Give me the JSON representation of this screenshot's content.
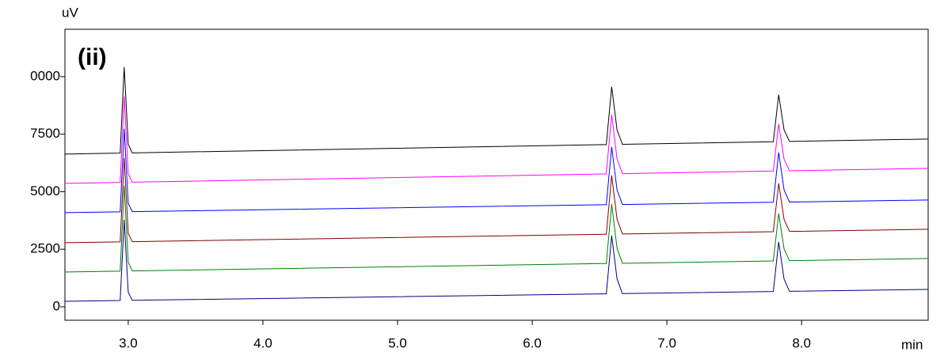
{
  "chart_data": {
    "type": "line",
    "annotation": "(ii)",
    "y_label": "uV",
    "x_label": "min",
    "x": [
      2.53,
      2.94,
      2.97,
      3.0,
      3.03,
      6.55,
      6.59,
      6.63,
      6.67,
      7.79,
      7.83,
      7.87,
      7.91,
      8.94
    ],
    "series": [
      {
        "color": "#000000",
        "values": [
          6637,
          6679,
          10420,
          7060,
          6688,
          7047,
          9560,
          7678,
          7059,
          7173,
          9216,
          7690,
          7185,
          7290
        ]
      },
      {
        "color": "#ff00ff",
        "values": [
          5364,
          5406,
          9147,
          5786,
          5415,
          5774,
          8356,
          6427,
          5786,
          5900,
          7944,
          6418,
          5912,
          6018
        ]
      },
      {
        "color": "#0000ff",
        "values": [
          4092,
          4127,
          7737,
          4493,
          4135,
          4437,
          6946,
          5070,
          4446,
          4543,
          6706,
          5087,
          4550,
          4642
        ]
      },
      {
        "color": "#800000",
        "values": [
          2785,
          2822,
          6465,
          3192,
          2831,
          3152,
          5708,
          3797,
          3163,
          3265,
          5364,
          3796,
          3276,
          3370
        ]
      },
      {
        "color": "#008000",
        "values": [
          1513,
          1550,
          5261,
          1927,
          1559,
          1880,
          4470,
          2534,
          1891,
          1993,
          4058,
          2516,
          2004,
          2098
        ]
      },
      {
        "color": "#000080",
        "values": [
          241,
          274,
          3783,
          630,
          281,
          565,
          3095,
          1203,
          574,
          664,
          2820,
          1208,
          673,
          757
        ]
      }
    ],
    "xlim": [
      2.53,
      8.94
    ],
    "ylim": [
      -585,
      12060
    ],
    "xticks": [
      {
        "value": 3,
        "label": "3.0"
      },
      {
        "value": 4,
        "label": "4.0"
      },
      {
        "value": 5,
        "label": "5.0"
      },
      {
        "value": 6,
        "label": "6.0"
      },
      {
        "value": 7,
        "label": "7.0"
      },
      {
        "value": 8,
        "label": "8.0"
      }
    ],
    "yticks": [
      0,
      2500,
      5000,
      7500,
      {
        "value": 10000,
        "label": "0000"
      }
    ]
  }
}
